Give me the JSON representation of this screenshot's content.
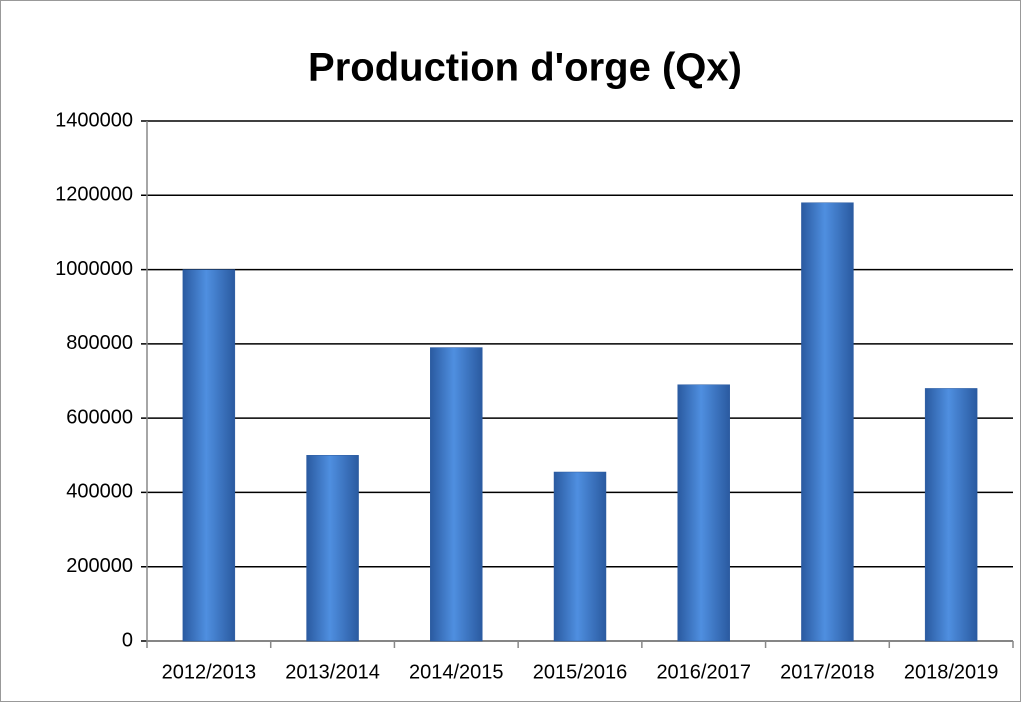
{
  "chart_data": {
    "type": "bar",
    "title": "Production d'orge  (Qx)",
    "categories": [
      "2012/2013",
      "2013/2014",
      "2014/2015",
      "2015/2016",
      "2016/2017",
      "2017/2018",
      "2018/2019"
    ],
    "values": [
      1000000,
      500000,
      790000,
      455000,
      690000,
      1180000,
      680000
    ],
    "color": "#3c78c8",
    "ylim": [
      0,
      1400000
    ],
    "yticks": [
      0,
      200000,
      400000,
      600000,
      800000,
      1000000,
      1200000,
      1400000
    ],
    "grid": true
  }
}
